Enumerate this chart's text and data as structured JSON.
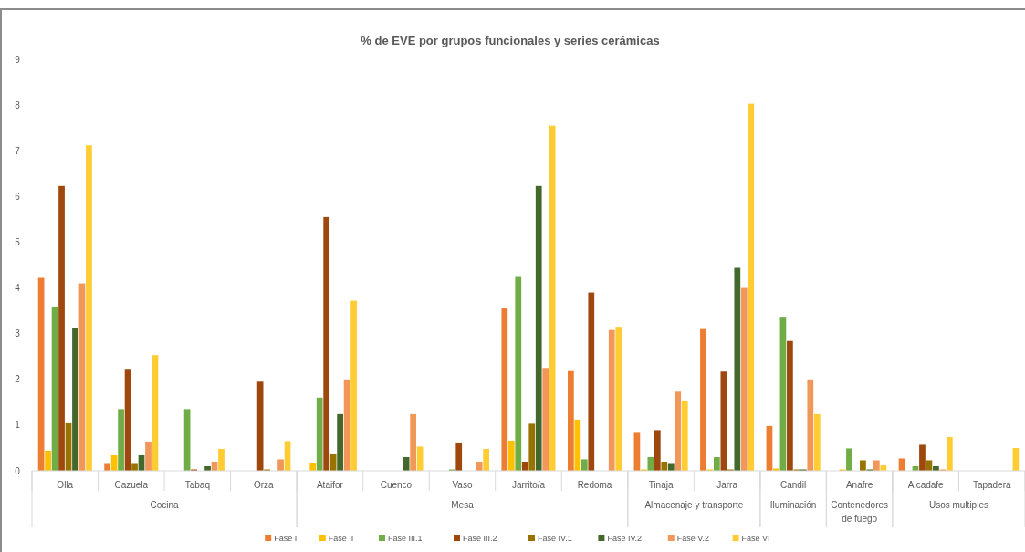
{
  "chart_data": {
    "type": "bar",
    "title": "% de EVE por grupos funcionales y series cerámicas",
    "categories": [
      "Olla",
      "Cazuela",
      "Tabaq",
      "Orza",
      "Ataifor",
      "Cuenco",
      "Vaso",
      "Jarrito/a",
      "Redoma",
      "Tinaja",
      "Jarra",
      "Candil",
      "Anafre",
      "Alcadafe",
      "Tapadera"
    ],
    "series": [
      {
        "name": "Fase I",
        "color": "#ed7d31",
        "values": [
          4.22,
          0.15,
          0,
          0,
          0,
          0,
          0,
          3.55,
          2.18,
          0.83,
          3.1,
          0.98,
          0,
          0.27,
          0
        ]
      },
      {
        "name": "Fase II",
        "color": "#ffc000",
        "values": [
          0.44,
          0.34,
          0,
          0,
          0.17,
          0,
          0,
          0.66,
          1.12,
          0.03,
          0.03,
          0.05,
          0.03,
          0,
          0
        ]
      },
      {
        "name": "Fase III.1",
        "color": "#70ad47",
        "values": [
          3.58,
          1.35,
          1.35,
          0,
          1.6,
          0,
          0.03,
          4.24,
          0.25,
          0.3,
          0.3,
          3.37,
          0.49,
          0.1,
          0
        ]
      },
      {
        "name": "Fase III.2",
        "color": "#9e480e",
        "values": [
          6.23,
          2.23,
          0.03,
          1.95,
          5.55,
          0,
          0.62,
          0.2,
          3.9,
          0.89,
          2.17,
          2.84,
          0,
          0.57,
          0
        ]
      },
      {
        "name": "Fase IV.1",
        "color": "#997300",
        "values": [
          1.04,
          0.15,
          0,
          0.03,
          0.36,
          0,
          0,
          1.03,
          0,
          0.2,
          0.03,
          0.03,
          0.23,
          0.23,
          0
        ]
      },
      {
        "name": "Fase IV.2",
        "color": "#43682b",
        "values": [
          3.13,
          0.34,
          0.1,
          0,
          1.24,
          0.3,
          0,
          6.23,
          0,
          0.15,
          4.44,
          0.03,
          0.03,
          0.1,
          0
        ]
      },
      {
        "name": "Fase V.2",
        "color": "#f1975a",
        "values": [
          4.1,
          0.64,
          0.2,
          0.25,
          2.0,
          1.24,
          0.2,
          2.25,
          3.08,
          1.73,
          4.0,
          2.0,
          0.23,
          0.03,
          0
        ]
      },
      {
        "name": "Fase VI",
        "color": "#ffcd33",
        "values": [
          7.12,
          2.53,
          0.48,
          0.65,
          3.72,
          0.53,
          0.48,
          7.55,
          3.15,
          1.53,
          8.03,
          1.24,
          0.12,
          0.74,
          0.5
        ]
      }
    ],
    "ylim": [
      0,
      9
    ],
    "yticks": [
      0,
      1,
      2,
      3,
      4,
      5,
      6,
      7,
      8,
      9
    ],
    "grid": false,
    "legend": "bottom",
    "annotations": [
      "Cocina",
      "Mesa",
      "Almacenaje y transporte",
      "Iluminación",
      "Contenedores de fuego",
      "Usos multiples"
    ]
  }
}
